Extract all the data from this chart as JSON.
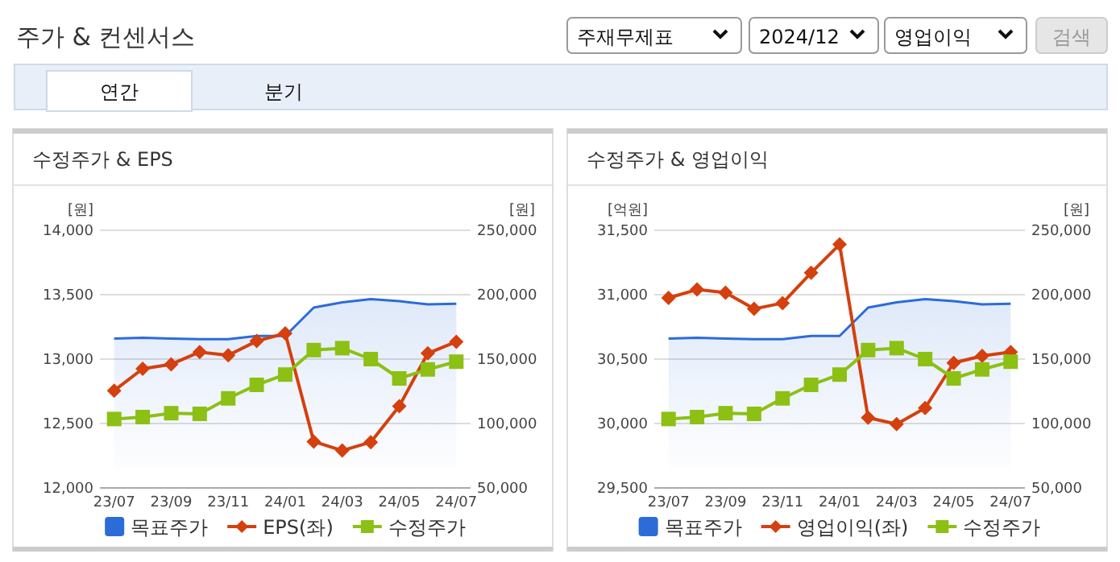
{
  "chart_data": [
    {
      "type": "other",
      "title": "주가 & 컨센서스",
      "annotations": [
        "주재무제표",
        "2024/12",
        "영업이익",
        "검색",
        "연간",
        "분기"
      ]
    },
    {
      "type": "line",
      "title": "수정주가 & EPS",
      "ylabel": "[원]",
      "y2label": "[원]",
      "categories": [
        "23/07",
        null,
        "23/09",
        null,
        "23/11",
        null,
        "24/01",
        null,
        "24/03",
        null,
        "24/05",
        null,
        "24/07"
      ],
      "ylim": [
        12000,
        14000
      ],
      "yticks": [
        {
          "value": 12000,
          "label": "12,000"
        },
        {
          "value": 12500,
          "label": "12,500"
        },
        {
          "value": 13000,
          "label": "13,000"
        },
        {
          "value": 13500,
          "label": "13,500"
        },
        {
          "value": 14000,
          "label": "14,000"
        }
      ],
      "y2lim": [
        50000,
        250000
      ],
      "y2ticks": [
        {
          "value": 50000,
          "label": "50,000"
        },
        {
          "value": 100000,
          "label": "100,000"
        },
        {
          "value": 150000,
          "label": "150,000"
        },
        {
          "value": 200000,
          "label": "200,000"
        },
        {
          "value": 250000,
          "label": "250,000"
        }
      ],
      "grid": "y",
      "legend": "bottom",
      "series": [
        {
          "name": "목표주가",
          "type": "area",
          "axis": "y2",
          "color": "#2b6cd9",
          "marker": "none",
          "values": [
            166000,
            166500,
            166000,
            165500,
            165500,
            168000,
            168000,
            190000,
            194000,
            196500,
            195000,
            192500,
            193000
          ]
        },
        {
          "name": "EPS(좌)",
          "type": "line",
          "color": "#d4400e",
          "marker": "diamond",
          "values": [
            12755,
            12925,
            12960,
            13055,
            13030,
            13140,
            13200,
            12360,
            12290,
            12355,
            12635,
            13045,
            13135
          ]
        },
        {
          "name": "수정주가",
          "type": "line",
          "axis": "y2",
          "color": "#8cc014",
          "marker": "square",
          "values": [
            103500,
            105000,
            108000,
            107500,
            119500,
            130000,
            138000,
            157000,
            158500,
            150000,
            135000,
            142000,
            148000
          ]
        }
      ]
    },
    {
      "type": "line",
      "title": "수정주가 & 영업이익",
      "ylabel": "[억원]",
      "y2label": "[원]",
      "categories": [
        "23/07",
        null,
        "23/09",
        null,
        "23/11",
        null,
        "24/01",
        null,
        "24/03",
        null,
        "24/05",
        null,
        "24/07"
      ],
      "ylim": [
        29500,
        31500
      ],
      "yticks": [
        {
          "value": 29500,
          "label": "29,500"
        },
        {
          "value": 30000,
          "label": "30,000"
        },
        {
          "value": 30500,
          "label": "30,500"
        },
        {
          "value": 31000,
          "label": "31,000"
        },
        {
          "value": 31500,
          "label": "31,500"
        }
      ],
      "y2lim": [
        50000,
        250000
      ],
      "y2ticks": [
        {
          "value": 50000,
          "label": "50,000"
        },
        {
          "value": 100000,
          "label": "100,000"
        },
        {
          "value": 150000,
          "label": "150,000"
        },
        {
          "value": 200000,
          "label": "200,000"
        },
        {
          "value": 250000,
          "label": "250,000"
        }
      ],
      "grid": "y",
      "legend": "bottom",
      "series": [
        {
          "name": "목표주가",
          "type": "area",
          "axis": "y2",
          "color": "#2b6cd9",
          "marker": "none",
          "values": [
            166000,
            166500,
            166000,
            165500,
            165500,
            168000,
            168000,
            190000,
            194000,
            196500,
            195000,
            192500,
            193000
          ]
        },
        {
          "name": "영업이익(좌)",
          "type": "line",
          "color": "#d4400e",
          "marker": "diamond",
          "values": [
            30975,
            31040,
            31015,
            30890,
            30935,
            31170,
            31390,
            30045,
            29995,
            30120,
            30470,
            30525,
            30555
          ]
        },
        {
          "name": "수정주가",
          "type": "line",
          "axis": "y2",
          "color": "#8cc014",
          "marker": "square",
          "values": [
            103500,
            105000,
            108000,
            107500,
            119500,
            130000,
            138000,
            157000,
            158500,
            150000,
            135000,
            142000,
            148000
          ]
        }
      ]
    }
  ]
}
